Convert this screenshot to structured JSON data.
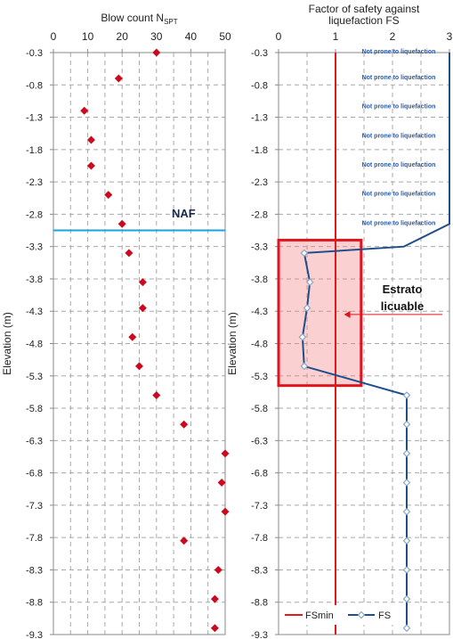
{
  "chart_data": [
    {
      "type": "scatter",
      "title": "Blow count N",
      "title_sub": "SPT",
      "xlabel": "",
      "ylabel": "Elevation (m)",
      "xlim": [
        0,
        50
      ],
      "ylim": [
        -9.3,
        -0.3
      ],
      "xticks": [
        0,
        10,
        20,
        30,
        40,
        50
      ],
      "yticks": [
        -0.3,
        -0.8,
        -1.3,
        -1.8,
        -2.3,
        -2.8,
        -3.3,
        -3.8,
        -4.3,
        -4.8,
        -5.3,
        -5.8,
        -6.3,
        -6.8,
        -7.3,
        -7.8,
        -8.3,
        -8.8,
        -9.3
      ],
      "grid": true,
      "marker_color": "#cc0a1e",
      "points": [
        {
          "x": 30,
          "y": -0.3
        },
        {
          "x": 19,
          "y": -0.7
        },
        {
          "x": 9,
          "y": -1.2
        },
        {
          "x": 11,
          "y": -1.65
        },
        {
          "x": 11,
          "y": -2.05
        },
        {
          "x": 16,
          "y": -2.5
        },
        {
          "x": 20,
          "y": -2.95
        },
        {
          "x": 22,
          "y": -3.4
        },
        {
          "x": 26,
          "y": -3.85
        },
        {
          "x": 26,
          "y": -4.25
        },
        {
          "x": 23,
          "y": -4.7
        },
        {
          "x": 25,
          "y": -5.15
        },
        {
          "x": 30,
          "y": -5.6
        },
        {
          "x": 38,
          "y": -6.05
        },
        {
          "x": 50,
          "y": -6.5
        },
        {
          "x": 49,
          "y": -6.95
        },
        {
          "x": 50,
          "y": -7.4
        },
        {
          "x": 38,
          "y": -7.85
        },
        {
          "x": 48,
          "y": -8.3
        },
        {
          "x": 47,
          "y": -8.75
        },
        {
          "x": 47,
          "y": -9.2
        }
      ],
      "water_table": {
        "label": "NAF",
        "y": -3.05,
        "color": "#1aa3e0"
      }
    },
    {
      "type": "line",
      "title": "Factor of safety against liquefaction FS",
      "title_lines": [
        "Factor of safety against",
        "liquefaction FS"
      ],
      "xlabel": "",
      "ylabel": "Elevation (m)",
      "xlim": [
        0,
        3
      ],
      "ylim": [
        -9.3,
        -0.3
      ],
      "xticks": [
        0,
        1,
        2,
        3
      ],
      "yticks": [
        -0.3,
        -0.8,
        -1.3,
        -1.8,
        -2.3,
        -2.8,
        -3.3,
        -3.8,
        -4.3,
        -4.8,
        -5.3,
        -5.8,
        -6.3,
        -6.8,
        -7.3,
        -7.8,
        -8.3,
        -8.8,
        -9.3
      ],
      "grid": true,
      "series": [
        {
          "name": "FSmin",
          "color": "#e01a1a",
          "x": [
            1,
            1
          ],
          "y": [
            -0.3,
            -9.3
          ]
        },
        {
          "name": "FS",
          "color": "#1f4e8c",
          "x": [
            3,
            3,
            2.2,
            0.45,
            0.55,
            0.5,
            0.42,
            0.45,
            2.25,
            2.25,
            2.25,
            2.25,
            2.25,
            2.25,
            2.25,
            2.25,
            2.25,
            2.25,
            2.25
          ],
          "y": [
            -0.3,
            -2.95,
            -3.3,
            -3.4,
            -3.85,
            -4.25,
            -4.7,
            -5.15,
            -5.6,
            -6.05,
            -6.5,
            -6.95,
            -7.4,
            -7.85,
            -8.3,
            -8.75,
            -9.2,
            -9.2,
            -9.2
          ],
          "marker_indices": [
            3,
            4,
            5,
            6,
            7,
            8,
            9,
            10,
            11,
            12,
            13,
            14,
            15,
            16
          ]
        }
      ],
      "annotations": {
        "not_prone_label": "Not prone to liquefaction",
        "not_prone_y": [
          -0.3,
          -0.7,
          -1.15,
          -1.6,
          -2.05,
          -2.5,
          -2.95
        ],
        "box_label_lines": [
          "Estrato",
          "licuable"
        ],
        "box_x": [
          0,
          1.45
        ],
        "box_y": [
          -3.2,
          -5.45
        ],
        "arrow_to": {
          "x": 1.15,
          "y": -4.35
        }
      },
      "legend": {
        "placement": "bottom",
        "items": [
          "FSmin",
          "FS"
        ]
      }
    }
  ]
}
